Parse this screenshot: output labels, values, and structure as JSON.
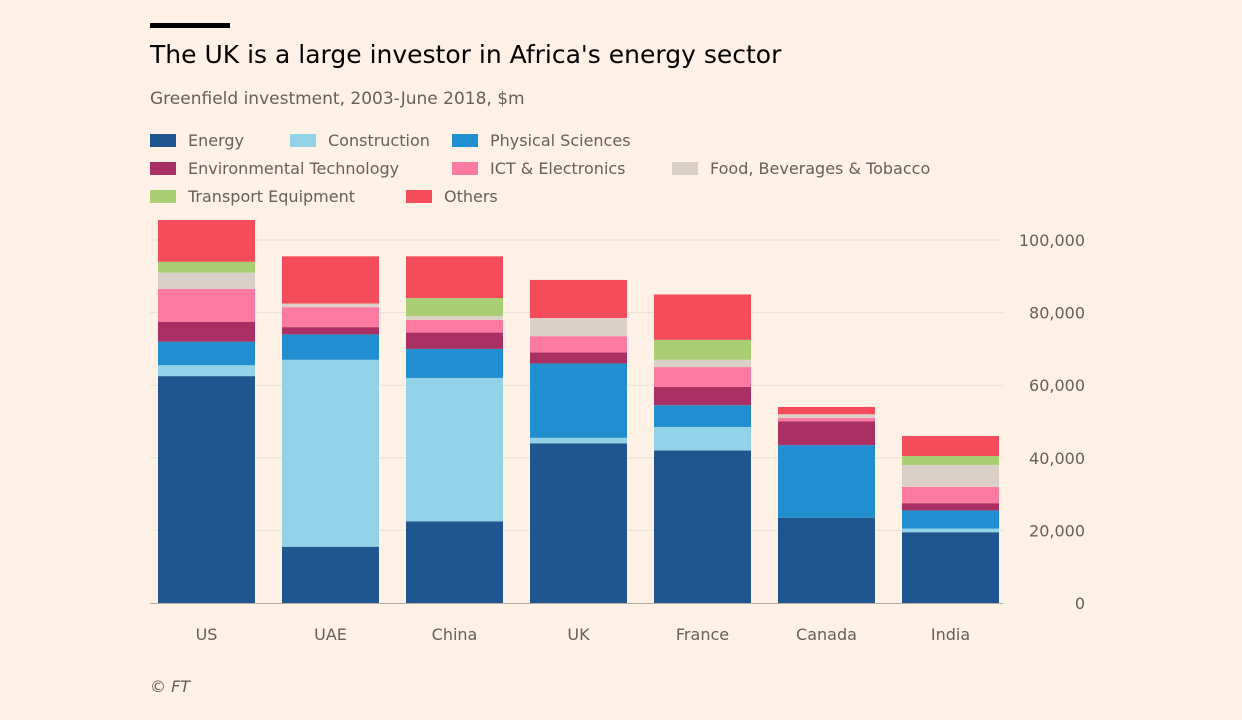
{
  "header": {
    "title": "The UK is a large investor in Africa's energy sector",
    "subtitle": "Greenfield investment, 2003-June 2018, $m"
  },
  "footer": {
    "source": "© FT"
  },
  "chart_data": {
    "type": "bar",
    "stacked": true,
    "categories": [
      "US",
      "UAE",
      "China",
      "UK",
      "France",
      "Canada",
      "India"
    ],
    "series": [
      {
        "name": "Energy",
        "color": "#1f5690",
        "values": [
          62500,
          15500,
          22500,
          44000,
          42000,
          23500,
          19500
        ]
      },
      {
        "name": "Construction",
        "color": "#92d2e7",
        "values": [
          3000,
          51500,
          39500,
          1500,
          6500,
          0,
          1000
        ]
      },
      {
        "name": "Physical Sciences",
        "color": "#218ed0",
        "values": [
          6500,
          7000,
          8000,
          20500,
          6000,
          20000,
          5000
        ]
      },
      {
        "name": "Environmental Technology",
        "color": "#aa3064",
        "values": [
          5500,
          2000,
          4500,
          3000,
          5000,
          6500,
          2000
        ]
      },
      {
        "name": "ICT & Electronics",
        "color": "#fd7aa3",
        "values": [
          9000,
          5500,
          3500,
          4500,
          5500,
          1000,
          4500
        ]
      },
      {
        "name": "Food, Beverages & Tobacco",
        "color": "#dbd0c7",
        "values": [
          4500,
          1000,
          1000,
          5000,
          2000,
          1000,
          6000
        ]
      },
      {
        "name": "Transport Equipment",
        "color": "#a9ce74",
        "values": [
          3000,
          0,
          5000,
          0,
          5500,
          0,
          2500
        ]
      },
      {
        "name": "Others",
        "color": "#f44c5b",
        "values": [
          11500,
          13000,
          11500,
          10500,
          12500,
          2000,
          5500
        ]
      }
    ],
    "ylim": [
      0,
      100000
    ],
    "yticks": [
      0,
      20000,
      40000,
      60000,
      80000,
      100000
    ],
    "ytick_labels": [
      "0",
      "20,000",
      "40,000",
      "60,000",
      "80,000",
      "100,000"
    ],
    "y_axis_side": "right",
    "grid": true,
    "legend_placement": "top-left"
  }
}
